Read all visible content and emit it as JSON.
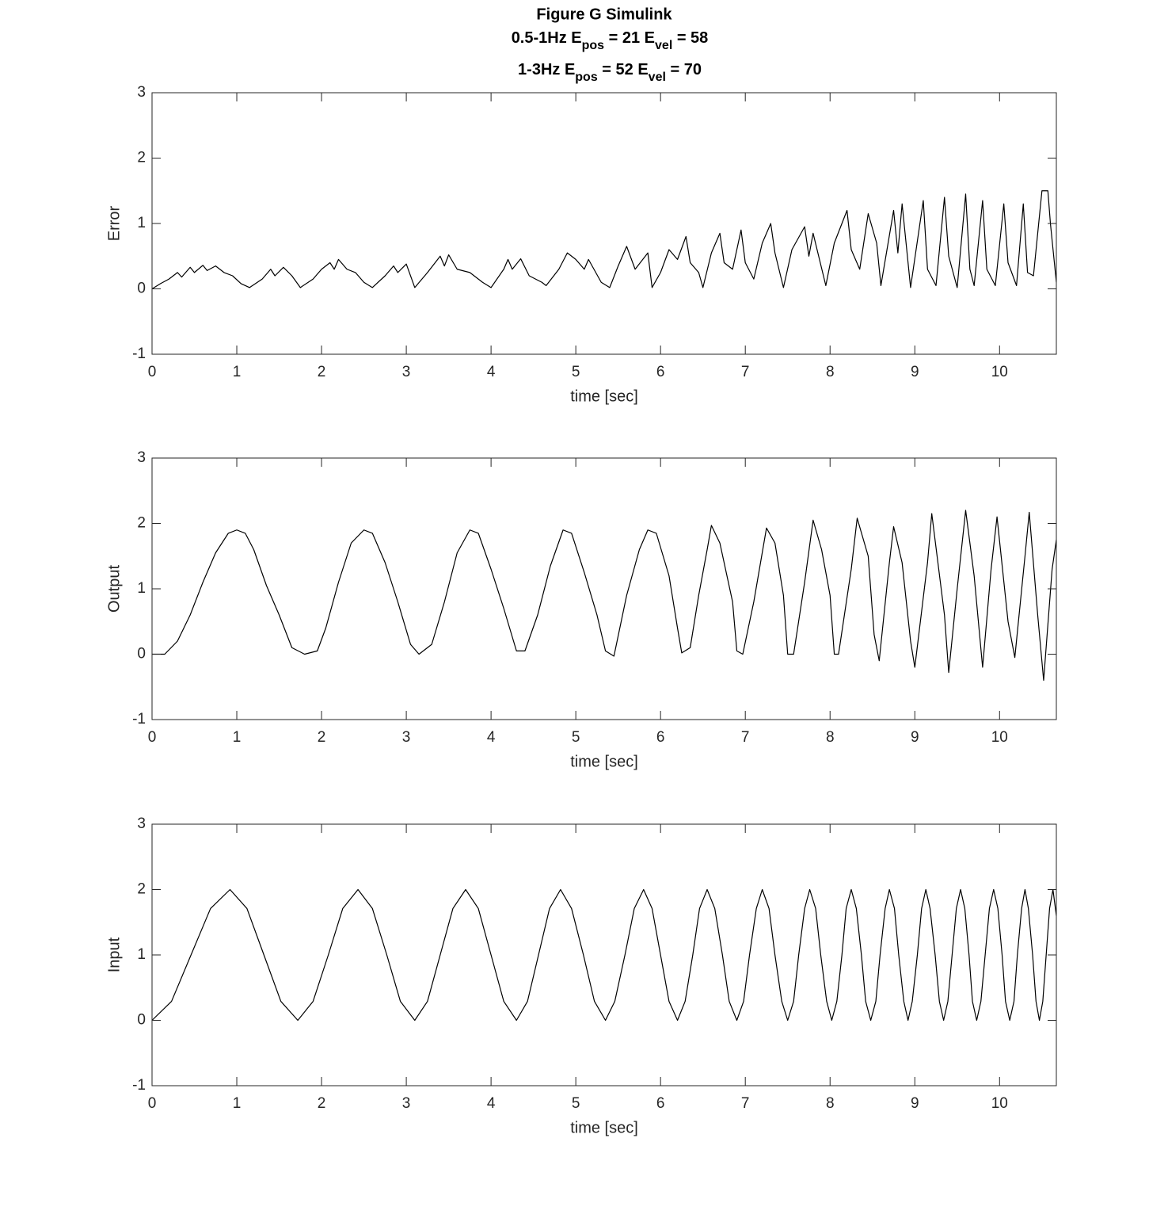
{
  "chart_data": [
    {
      "type": "line",
      "title": "Figure G Simulink",
      "subtitle": [
        "0.5-1Hz E_{pos} = 21 E_{vel} = 58",
        "1-3Hz E_{pos} = 52 E_{vel} = 70"
      ],
      "xlabel": "time [sec]",
      "ylabel": "Error",
      "xlim": [
        0,
        10.67
      ],
      "ylim": [
        -1,
        3
      ],
      "xticks": [
        0,
        1,
        2,
        3,
        4,
        5,
        6,
        7,
        8,
        9,
        10
      ],
      "yticks": [
        -1,
        0,
        1,
        2,
        3
      ],
      "color": "#000000",
      "x": [
        0,
        0.1,
        0.2,
        0.3,
        0.35,
        0.45,
        0.5,
        0.6,
        0.65,
        0.75,
        0.85,
        0.95,
        1.05,
        1.15,
        1.3,
        1.4,
        1.45,
        1.55,
        1.65,
        1.75,
        1.9,
        2.0,
        2.1,
        2.15,
        2.2,
        2.3,
        2.4,
        2.5,
        2.6,
        2.75,
        2.85,
        2.9,
        3.0,
        3.1,
        3.25,
        3.4,
        3.45,
        3.5,
        3.6,
        3.75,
        3.9,
        4.0,
        4.15,
        4.2,
        4.25,
        4.35,
        4.45,
        4.6,
        4.65,
        4.8,
        4.9,
        5.0,
        5.1,
        5.15,
        5.3,
        5.4,
        5.5,
        5.6,
        5.7,
        5.85,
        5.9,
        6.0,
        6.1,
        6.2,
        6.3,
        6.35,
        6.45,
        6.5,
        6.6,
        6.7,
        6.75,
        6.85,
        6.95,
        7.0,
        7.1,
        7.2,
        7.3,
        7.35,
        7.45,
        7.55,
        7.7,
        7.75,
        7.8,
        7.95,
        8.05,
        8.2,
        8.25,
        8.35,
        8.45,
        8.55,
        8.6,
        8.75,
        8.8,
        8.85,
        8.95,
        9.1,
        9.15,
        9.25,
        9.35,
        9.4,
        9.5,
        9.6,
        9.65,
        9.7,
        9.8,
        9.85,
        9.95,
        10.05,
        10.1,
        10.2,
        10.28,
        10.33,
        10.4,
        10.5,
        10.57,
        10.6,
        10.67
      ],
      "values": [
        0,
        0.08,
        0.15,
        0.25,
        0.18,
        0.33,
        0.25,
        0.36,
        0.28,
        0.35,
        0.25,
        0.2,
        0.08,
        0.02,
        0.15,
        0.3,
        0.2,
        0.33,
        0.2,
        0.02,
        0.15,
        0.3,
        0.4,
        0.3,
        0.45,
        0.3,
        0.25,
        0.1,
        0.02,
        0.2,
        0.35,
        0.25,
        0.38,
        0.02,
        0.25,
        0.5,
        0.35,
        0.52,
        0.3,
        0.25,
        0.1,
        0.02,
        0.3,
        0.45,
        0.3,
        0.46,
        0.2,
        0.1,
        0.05,
        0.3,
        0.55,
        0.45,
        0.3,
        0.45,
        0.1,
        0.02,
        0.35,
        0.65,
        0.3,
        0.55,
        0.02,
        0.25,
        0.6,
        0.45,
        0.8,
        0.4,
        0.25,
        0.02,
        0.55,
        0.85,
        0.4,
        0.3,
        0.9,
        0.4,
        0.15,
        0.7,
        1.0,
        0.55,
        0.02,
        0.6,
        0.95,
        0.5,
        0.85,
        0.05,
        0.7,
        1.2,
        0.6,
        0.3,
        1.15,
        0.7,
        0.05,
        1.2,
        0.55,
        1.3,
        0.02,
        1.35,
        0.3,
        0.05,
        1.4,
        0.5,
        0.02,
        1.45,
        0.3,
        0.05,
        1.35,
        0.3,
        0.05,
        1.3,
        0.4,
        0.05,
        1.3,
        0.25,
        0.2,
        1.5,
        1.5,
        1.0,
        0.1
      ]
    },
    {
      "type": "line",
      "xlabel": "time [sec]",
      "ylabel": "Output",
      "xlim": [
        0,
        10.67
      ],
      "ylim": [
        -1,
        3
      ],
      "xticks": [
        0,
        1,
        2,
        3,
        4,
        5,
        6,
        7,
        8,
        9,
        10
      ],
      "yticks": [
        -1,
        0,
        1,
        2,
        3
      ],
      "color": "#000000",
      "x": [
        0,
        0.15,
        0.3,
        0.45,
        0.6,
        0.75,
        0.9,
        1.0,
        1.1,
        1.2,
        1.35,
        1.5,
        1.65,
        1.8,
        1.95,
        2.05,
        2.2,
        2.35,
        2.5,
        2.6,
        2.75,
        2.9,
        3.05,
        3.15,
        3.3,
        3.45,
        3.6,
        3.75,
        3.85,
        4.0,
        4.15,
        4.3,
        4.4,
        4.55,
        4.7,
        4.85,
        4.95,
        5.1,
        5.25,
        5.35,
        5.45,
        5.6,
        5.75,
        5.85,
        5.95,
        6.1,
        6.2,
        6.25,
        6.35,
        6.45,
        6.55,
        6.6,
        6.7,
        6.85,
        6.9,
        6.97,
        7.1,
        7.25,
        7.35,
        7.45,
        7.5,
        7.57,
        7.7,
        7.8,
        7.9,
        8.0,
        8.05,
        8.1,
        8.25,
        8.32,
        8.45,
        8.52,
        8.58,
        8.7,
        8.75,
        8.85,
        8.95,
        9.0,
        9.15,
        9.2,
        9.35,
        9.4,
        9.5,
        9.6,
        9.7,
        9.8,
        9.9,
        9.97,
        10.1,
        10.18,
        10.3,
        10.35,
        10.45,
        10.52,
        10.62,
        10.67
      ],
      "values": [
        0,
        0,
        0.2,
        0.6,
        1.1,
        1.55,
        1.85,
        1.9,
        1.85,
        1.6,
        1.05,
        0.6,
        0.1,
        0,
        0.05,
        0.4,
        1.1,
        1.7,
        1.9,
        1.85,
        1.4,
        0.8,
        0.15,
        0,
        0.15,
        0.8,
        1.55,
        1.9,
        1.85,
        1.3,
        0.7,
        0.05,
        0.05,
        0.6,
        1.35,
        1.9,
        1.85,
        1.25,
        0.6,
        0.05,
        -0.03,
        0.9,
        1.6,
        1.9,
        1.85,
        1.2,
        0.4,
        0.02,
        0.1,
        0.9,
        1.6,
        1.97,
        1.7,
        0.8,
        0.05,
        0,
        0.8,
        1.93,
        1.7,
        0.9,
        0,
        0,
        1.1,
        2.05,
        1.6,
        0.9,
        0,
        0,
        1.3,
        2.08,
        1.5,
        0.3,
        -0.1,
        1.4,
        1.95,
        1.4,
        0.2,
        -0.2,
        1.4,
        2.15,
        0.6,
        -0.28,
        1.0,
        2.2,
        1.2,
        -0.2,
        1.3,
        2.1,
        0.5,
        -0.05,
        1.5,
        2.17,
        0.6,
        -0.4,
        1.3,
        1.75
      ]
    },
    {
      "type": "line",
      "xlabel": "time [sec]",
      "ylabel": "Input",
      "xlim": [
        0,
        10.67
      ],
      "ylim": [
        -1,
        3
      ],
      "xticks": [
        0,
        1,
        2,
        3,
        4,
        5,
        6,
        7,
        8,
        9,
        10
      ],
      "yticks": [
        -1,
        0,
        1,
        2,
        3
      ],
      "color": "#000000",
      "x": [
        0,
        0.23,
        0.46,
        0.69,
        0.92,
        1.12,
        1.32,
        1.52,
        1.72,
        1.9,
        2.08,
        2.25,
        2.43,
        2.6,
        2.77,
        2.93,
        3.1,
        3.25,
        3.4,
        3.55,
        3.7,
        3.85,
        4.0,
        4.15,
        4.3,
        4.43,
        4.56,
        4.69,
        4.82,
        4.95,
        5.09,
        5.22,
        5.35,
        5.46,
        5.58,
        5.69,
        5.8,
        5.9,
        6.0,
        6.1,
        6.2,
        6.29,
        6.38,
        6.46,
        6.55,
        6.64,
        6.73,
        6.81,
        6.9,
        6.98,
        7.05,
        7.13,
        7.2,
        7.28,
        7.35,
        7.43,
        7.5,
        7.57,
        7.63,
        7.7,
        7.76,
        7.83,
        7.89,
        7.96,
        8.02,
        8.08,
        8.14,
        8.19,
        8.25,
        8.31,
        8.37,
        8.42,
        8.48,
        8.54,
        8.59,
        8.65,
        8.7,
        8.76,
        8.81,
        8.87,
        8.92,
        8.97,
        9.03,
        9.08,
        9.13,
        9.18,
        9.24,
        9.29,
        9.34,
        9.39,
        9.44,
        9.49,
        9.54,
        9.59,
        9.64,
        9.68,
        9.73,
        9.78,
        9.83,
        9.88,
        9.93,
        9.98,
        10.03,
        10.07,
        10.12,
        10.17,
        10.21,
        10.26,
        10.3,
        10.34,
        10.39,
        10.43,
        10.47,
        10.51,
        10.55,
        10.59,
        10.63,
        10.67
      ],
      "values": [
        0,
        0.29,
        1,
        1.71,
        2,
        1.71,
        1,
        0.29,
        0,
        0.29,
        1,
        1.71,
        2,
        1.71,
        1,
        0.29,
        0,
        0.29,
        1,
        1.71,
        2,
        1.71,
        1,
        0.29,
        0,
        0.29,
        1,
        1.71,
        2,
        1.71,
        1,
        0.29,
        0,
        0.29,
        1,
        1.71,
        2,
        1.71,
        1,
        0.29,
        0,
        0.29,
        1,
        1.71,
        2,
        1.71,
        1,
        0.29,
        0,
        0.29,
        1,
        1.71,
        2,
        1.71,
        1,
        0.29,
        0,
        0.29,
        1,
        1.71,
        2,
        1.71,
        1,
        0.29,
        0,
        0.29,
        1,
        1.71,
        2,
        1.71,
        1,
        0.29,
        0,
        0.29,
        1,
        1.71,
        2,
        1.71,
        1,
        0.29,
        0,
        0.29,
        1,
        1.71,
        2,
        1.71,
        1,
        0.29,
        0,
        0.29,
        1,
        1.71,
        2,
        1.71,
        1,
        0.29,
        0,
        0.29,
        1,
        1.71,
        2,
        1.71,
        1,
        0.29,
        0,
        0.29,
        1,
        1.71,
        2,
        1.71,
        1,
        0.29,
        0,
        0.29,
        1,
        1.71,
        2,
        1.6
      ]
    }
  ]
}
